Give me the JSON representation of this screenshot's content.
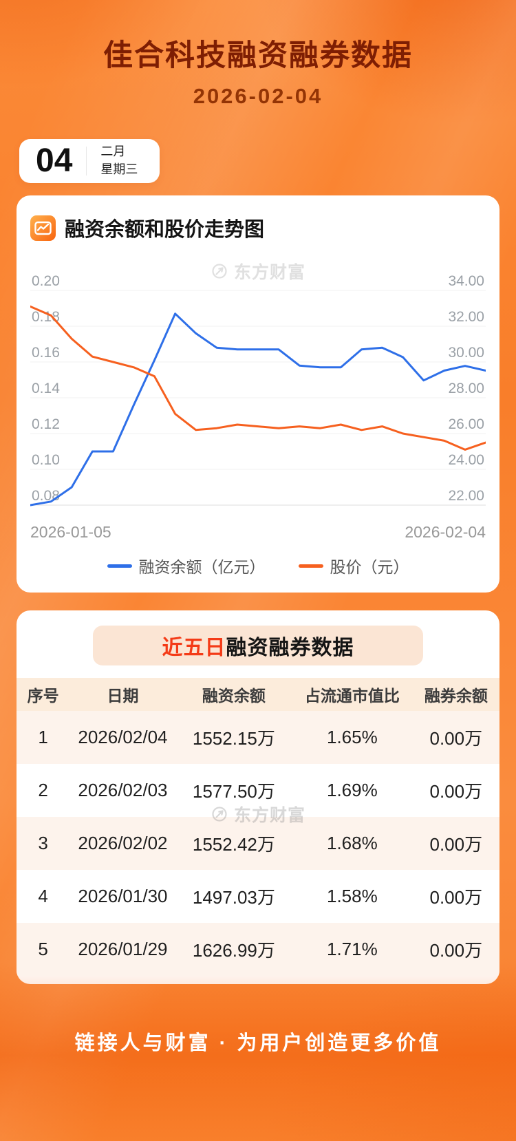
{
  "header": {
    "title": "佳合科技融资融券数据",
    "date": "2026-02-04"
  },
  "calendar": {
    "day": "04",
    "month": "二月",
    "weekday": "星期三"
  },
  "watermark": {
    "text": "东方财富"
  },
  "chart_section": {
    "title": "融资余额和股价走势图"
  },
  "chart_data": {
    "type": "line",
    "title": "融资余额和股价走势图",
    "x_axis": {
      "start_label": "2026-01-05",
      "end_label": "2026-02-04"
    },
    "left_axis": {
      "min": 0.08,
      "max": 0.2,
      "ticks": [
        "0.20",
        "0.18",
        "0.16",
        "0.14",
        "0.12",
        "0.10",
        "0.08"
      ]
    },
    "right_axis": {
      "min": 22,
      "max": 34,
      "ticks": [
        "34.00",
        "32.00",
        "30.00",
        "28.00",
        "26.00",
        "24.00",
        "22.00"
      ]
    },
    "grid": true,
    "legend_position": "bottom",
    "series": [
      {
        "name": "融资余额（亿元）",
        "axis": "left",
        "color": "#2e6fe8",
        "values": [
          0.08,
          0.082,
          0.09,
          0.11,
          0.11,
          0.136,
          0.161,
          0.187,
          0.176,
          0.168,
          0.167,
          0.167,
          0.167,
          0.158,
          0.157,
          0.157,
          0.167,
          0.168,
          0.1627,
          0.1497,
          0.1552,
          0.1578,
          0.1552
        ]
      },
      {
        "name": "股价（元）",
        "axis": "right",
        "color": "#f6601f",
        "values": [
          33.1,
          32.6,
          31.3,
          30.3,
          30.0,
          29.7,
          29.2,
          27.1,
          26.2,
          26.3,
          26.5,
          26.4,
          26.3,
          26.4,
          26.3,
          26.5,
          26.2,
          26.4,
          26.0,
          25.8,
          25.6,
          25.1,
          25.5
        ]
      }
    ]
  },
  "table_section": {
    "highlight": "近五日",
    "rest": "融资融券数据"
  },
  "table": {
    "headers": [
      "序号",
      "日期",
      "融资余额",
      "占流通市值比",
      "融券余额"
    ],
    "rows": [
      [
        "1",
        "2026/02/04",
        "1552.15万",
        "1.65%",
        "0.00万"
      ],
      [
        "2",
        "2026/02/03",
        "1577.50万",
        "1.69%",
        "0.00万"
      ],
      [
        "3",
        "2026/02/02",
        "1552.42万",
        "1.68%",
        "0.00万"
      ],
      [
        "4",
        "2026/01/30",
        "1497.03万",
        "1.58%",
        "0.00万"
      ],
      [
        "5",
        "2026/01/29",
        "1626.99万",
        "1.71%",
        "0.00万"
      ]
    ]
  },
  "footer": {
    "slogan": "链接人与财富 · 为用户创造更多价值"
  },
  "colors": {
    "background_orange": "#f97e2a",
    "title_maroon": "#7e1e03",
    "line_blue": "#2e6fe8",
    "line_orange": "#f6601f",
    "highlight_red": "#f43b17",
    "row_peach": "#fdf3ec",
    "header_peach": "#fcecdb"
  }
}
